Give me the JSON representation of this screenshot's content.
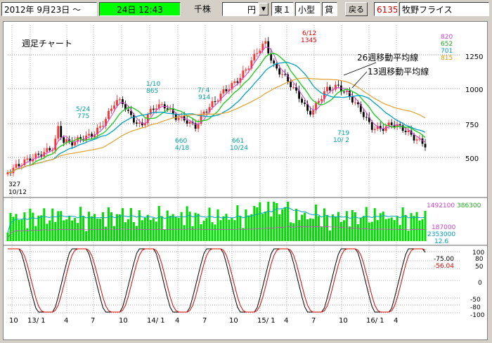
{
  "toolbar": {
    "date_label": "2012年  9月23日 ～",
    "time_display": "24日  12:43",
    "unit_label": "千株",
    "currency_value": "円",
    "dropdown_icon": "chevron-down-icon",
    "market_value": "東１",
    "size_value": "小型",
    "lend_value": "貸",
    "back_button_label": "戻る",
    "code": "6135",
    "company_name": "牧野フライス"
  },
  "chart": {
    "title_text": "週足チャート",
    "legend_26": "26週移動平均線",
    "legend_13": "13週移動平均線",
    "price_axis": [
      "1250",
      "1000",
      "750",
      "500"
    ],
    "legend_values": [
      {
        "text": "820",
        "color": "#cc44cc"
      },
      {
        "text": "652",
        "color": "#22aa22"
      },
      {
        "text": "701",
        "color": "#00a0c0"
      },
      {
        "text": "815",
        "color": "#dd9900"
      }
    ],
    "volume_values": [
      {
        "text": "1492100",
        "color": "#cc44cc"
      },
      {
        "text": "386300",
        "color": "#22aa22"
      },
      {
        "text": "187000",
        "color": "#cc44cc"
      },
      {
        "text": "2353000",
        "color": "#00a0c0"
      },
      {
        "text": "12.6",
        "color": "#00a0c0"
      }
    ],
    "osc_axis": [
      "100",
      "80",
      "50",
      "0",
      "-50",
      "-80",
      "-100"
    ],
    "osc_values": [
      {
        "text": "-75.00",
        "color": "#000000"
      },
      {
        "text": "-56.04",
        "color": "#dd0000"
      }
    ],
    "x_labels": [
      "10",
      "13/ 1",
      "4",
      "7",
      "10",
      "14/ 1",
      "4",
      "7",
      "10",
      "15/ 1",
      "4",
      "7",
      "10",
      "16/ 1",
      "4"
    ],
    "annotations": [
      {
        "text": "327",
        "color": "#000000"
      },
      {
        "text": "10/12",
        "color": "#000000"
      },
      {
        "text": "5/24",
        "color": "#00a0a0"
      },
      {
        "text": "775",
        "color": "#00a0a0"
      },
      {
        "text": "1/10",
        "color": "#00a0a0"
      },
      {
        "text": "865",
        "color": "#00a0a0"
      },
      {
        "text": "7/ 4",
        "color": "#00a0a0"
      },
      {
        "text": "914",
        "color": "#00a0a0"
      },
      {
        "text": "660",
        "color": "#00a0a0"
      },
      {
        "text": "4/18",
        "color": "#00a0a0"
      },
      {
        "text": "661",
        "color": "#00a0a0"
      },
      {
        "text": "10/24",
        "color": "#00a0a0"
      },
      {
        "text": "6/12",
        "color": "#dd0000"
      },
      {
        "text": "1345",
        "color": "#dd0000"
      },
      {
        "text": "719",
        "color": "#00a0a0"
      },
      {
        "text": "10/ 2",
        "color": "#00a0a0"
      }
    ]
  }
}
